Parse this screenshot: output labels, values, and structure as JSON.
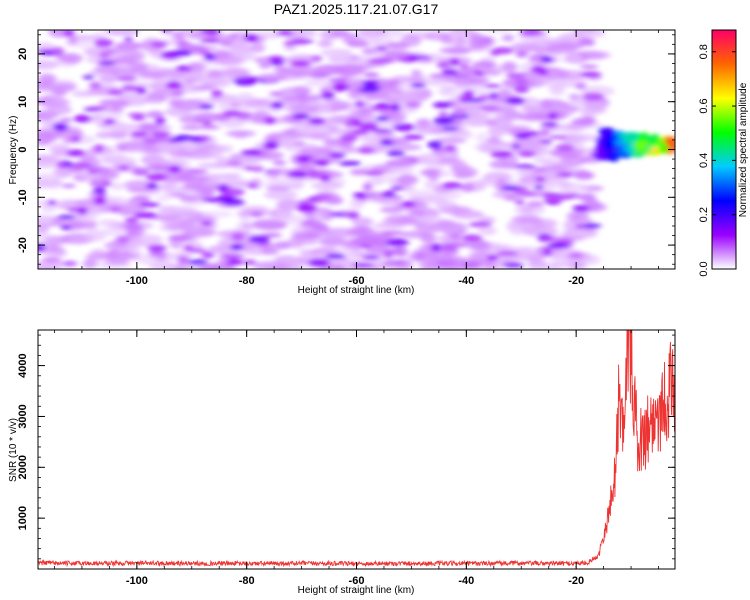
{
  "figure": {
    "title": "PAZ1.2025.117.21.07.G17"
  },
  "chart_data": [
    {
      "type": "heatmap",
      "xlabel": "Height of straight line (km)",
      "ylabel": "Frequency (Hz)",
      "xlim": [
        -118,
        -2
      ],
      "ylim": [
        -25,
        25
      ],
      "xticks": [
        -100,
        -80,
        -60,
        -40,
        -20
      ],
      "yticks": [
        -20,
        -10,
        0,
        10,
        20
      ],
      "grid": false,
      "colorbar": {
        "label": "Normalized spectral amplitude",
        "range": [
          0,
          0.88
        ],
        "ticks": [
          0.0,
          0.2,
          0.4,
          0.6,
          0.8
        ],
        "colors": [
          "#ffffff",
          "#9900ff",
          "#0000ff",
          "#00ccff",
          "#00ff00",
          "#ffff00",
          "#ff6600",
          "#ff0066"
        ]
      },
      "signal_features": [
        {
          "x_range": [
            -16,
            -2
          ],
          "y_center": 1,
          "y_spread": 4,
          "peak_amplitude": 0.65
        },
        {
          "x_range": [
            -118,
            -16
          ],
          "y_center": 0,
          "y_spread": 25,
          "peak_amplitude": 0.12
        }
      ]
    },
    {
      "type": "line",
      "xlabel": "Height of straight line (km)",
      "ylabel": "SNR (10 * v/v)",
      "xlim": [
        -118,
        -2
      ],
      "ylim": [
        0,
        4700
      ],
      "xticks": [
        -100,
        -80,
        -60,
        -40,
        -20
      ],
      "yticks": [
        1000,
        2000,
        3000,
        4000
      ],
      "grid": false,
      "series": [
        {
          "color": "#ee3333",
          "x": [
            -118,
            -110,
            -100,
            -90,
            -80,
            -70,
            -60,
            -50,
            -40,
            -30,
            -22,
            -18,
            -16,
            -15,
            -14,
            -13,
            -12.5,
            -12,
            -11.5,
            -11,
            -10.5,
            -10,
            -9.5,
            -9,
            -8,
            -7,
            -6,
            -5,
            -4,
            -3,
            -2
          ],
          "y": [
            120,
            110,
            115,
            110,
            108,
            112,
            105,
            110,
            108,
            115,
            110,
            120,
            250,
            700,
            1100,
            1800,
            2800,
            3600,
            2600,
            4200,
            4600,
            4100,
            3500,
            2700,
            2500,
            2800,
            2900,
            3100,
            3300,
            3500,
            3600
          ]
        }
      ]
    }
  ]
}
